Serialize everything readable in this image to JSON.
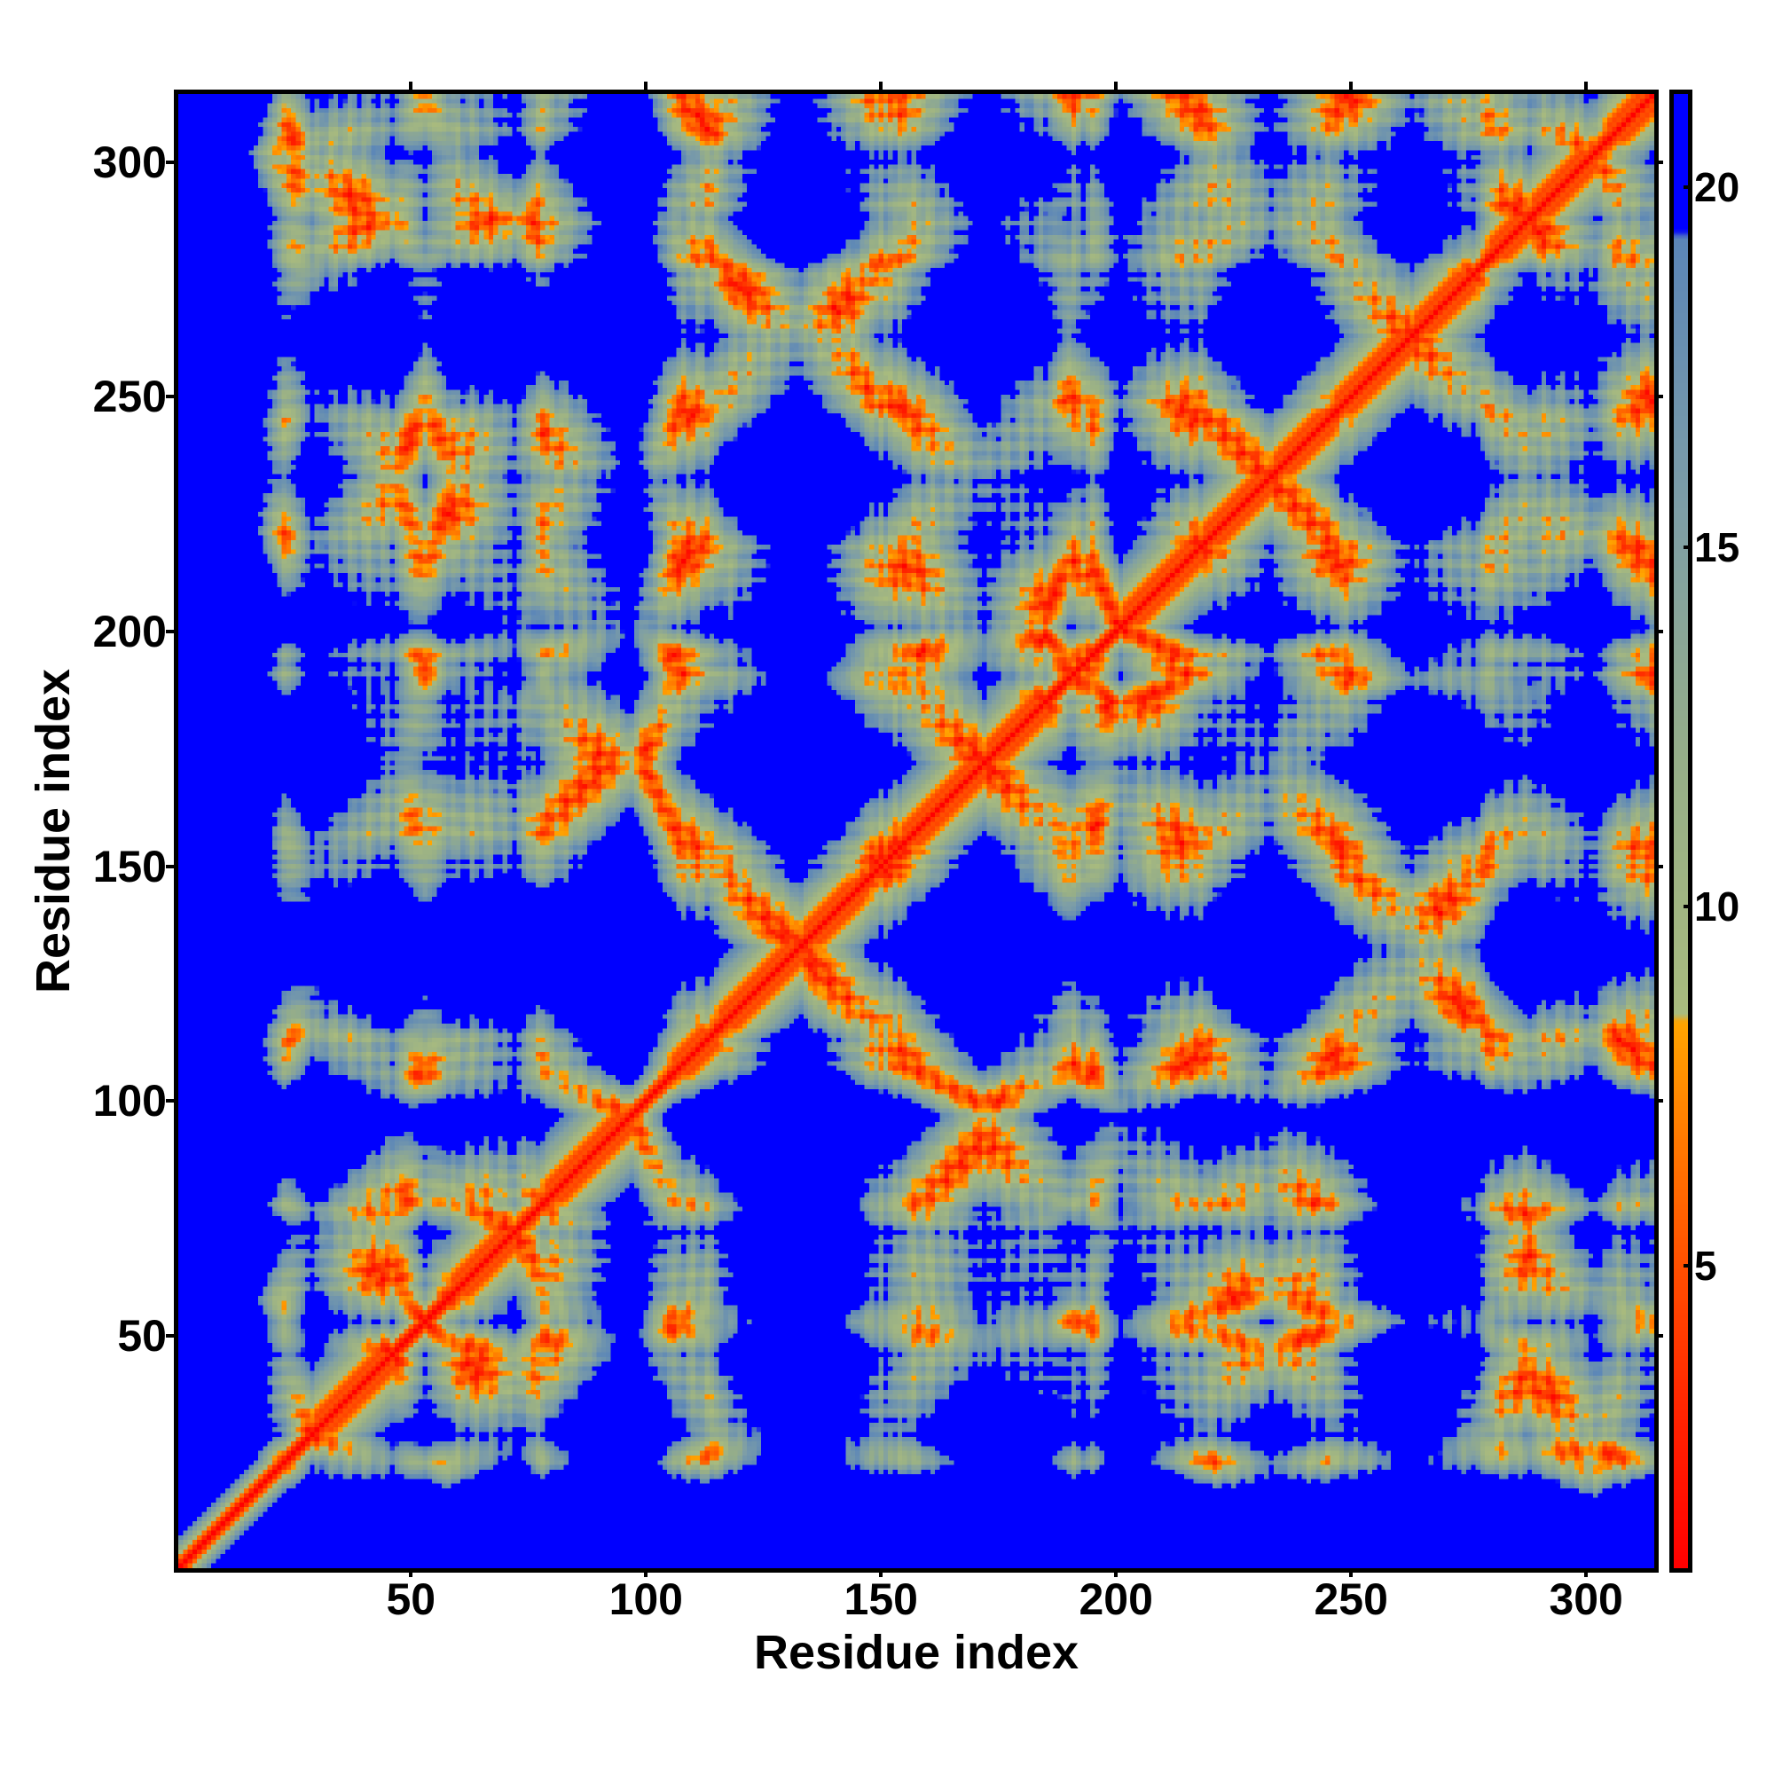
{
  "chart_data": {
    "type": "heatmap",
    "title": "",
    "xlabel": "Residue index",
    "ylabel": "Residue index",
    "n_residues": 314,
    "xlim": [
      0.5,
      314.5
    ],
    "ylim": [
      0.5,
      314.5
    ],
    "x_ticks": [
      50,
      100,
      150,
      200,
      250,
      300
    ],
    "y_ticks": [
      50,
      100,
      150,
      200,
      250,
      300
    ],
    "x_tick_labels": [
      "50",
      "100",
      "150",
      "200",
      "250",
      "300"
    ],
    "y_tick_labels": [
      "50",
      "100",
      "150",
      "200",
      "250",
      "300"
    ],
    "colorbar": {
      "range": [
        0.8,
        21.3
      ],
      "ticks": [
        5,
        10,
        15,
        20
      ],
      "tick_labels": [
        "5",
        "10",
        "15",
        "20"
      ],
      "stops": [
        {
          "value": 0.8,
          "color": "#ff0000"
        },
        {
          "value": 3.0,
          "color": "#ff2500"
        },
        {
          "value": 5.0,
          "color": "#ff5000"
        },
        {
          "value": 7.0,
          "color": "#ff8000"
        },
        {
          "value": 8.4,
          "color": "#ffa500"
        },
        {
          "value": 8.5,
          "color": "#a9bb7e"
        },
        {
          "value": 12.0,
          "color": "#96ae88"
        },
        {
          "value": 15.5,
          "color": "#7e9ea6"
        },
        {
          "value": 19.3,
          "color": "#5b86b8"
        },
        {
          "value": 19.4,
          "color": "#0000ff"
        },
        {
          "value": 21.3,
          "color": "#0000ff"
        }
      ],
      "saturation_color": "#0000ff"
    },
    "matrix_description_seed": 7,
    "symmetric": true,
    "n_terminal_tail_residues": 22
  }
}
